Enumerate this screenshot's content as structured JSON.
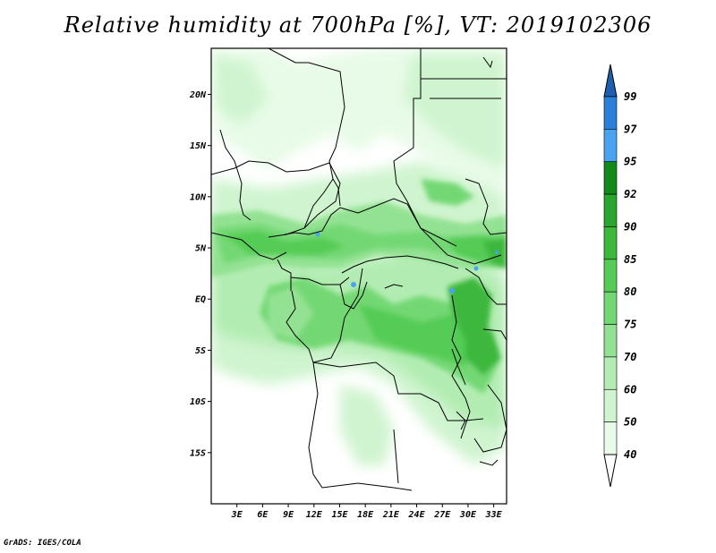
{
  "title": "Relative humidity at 700hPa [%], VT: 2019102306",
  "credit": "GrADS: IGES/COLA",
  "map": {
    "lat_ticks": [
      "20N",
      "15N",
      "10N",
      "5N",
      "EQ",
      "5S",
      "10S",
      "15S"
    ],
    "lat_values": [
      20,
      15,
      10,
      5,
      0,
      -5,
      -10,
      -15
    ],
    "lon_ticks": [
      "3E",
      "6E",
      "9E",
      "12E",
      "15E",
      "18E",
      "21E",
      "24E",
      "27E",
      "30E",
      "33E"
    ],
    "lon_values": [
      3,
      6,
      9,
      12,
      15,
      18,
      21,
      24,
      27,
      30,
      33
    ],
    "lon_range": [
      0,
      34.5
    ],
    "lat_range": [
      -20,
      24.5
    ]
  },
  "colorbar": {
    "labels": [
      "99",
      "97",
      "95",
      "92",
      "90",
      "85",
      "80",
      "75",
      "70",
      "60",
      "50",
      "40"
    ],
    "colors": [
      "#1f5fb0",
      "#2a7fd8",
      "#4aa3f0",
      "#118a1a",
      "#2aa52e",
      "#3cb83c",
      "#55cc55",
      "#73d873",
      "#93e293",
      "#b2ecb2",
      "#cff4cf",
      "#e8fbe8",
      "#ffffff"
    ]
  }
}
